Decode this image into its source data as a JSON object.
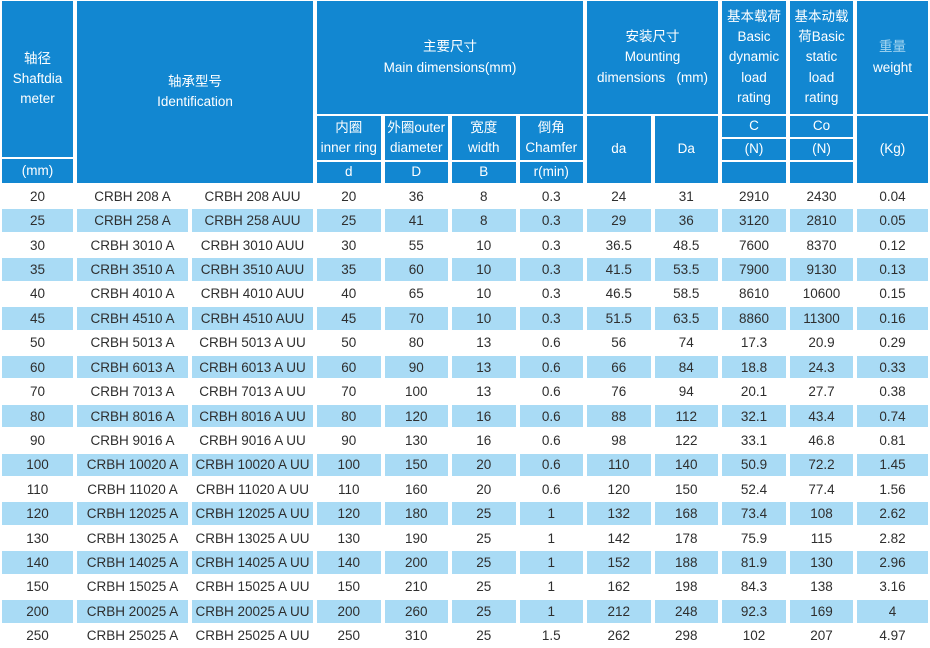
{
  "colors": {
    "header_blue": "#1287d1",
    "row_highlight_blue": "#a9dbf5",
    "data_text": "#2e2e2e",
    "weight_cn_tint": "#a6d6f0"
  },
  "table": {
    "header": {
      "shaft_diameter": "轴径\nShaftdia\nmeter",
      "shaft_diameter_unit": "(mm)",
      "identification": "轴承型号\nIdentification",
      "main_dimensions": "主要尺寸\nMain dimensions(mm)",
      "inner_ring": "内圈\ninner ring",
      "inner_ring_symbol": "d",
      "outer_diameter": "外圈outer\ndiameter",
      "outer_diameter_symbol": "D",
      "width": "宽度\nwidth",
      "width_symbol": "B",
      "chamfer": "倒角\nChamfer",
      "chamfer_symbol": "r(min)",
      "mounting_dimensions": "安装尺寸\nMounting\ndimensions   (mm)",
      "da_label": "da",
      "Da_label": "Da",
      "dynamic_load": "基本载荷\nBasic\ndynamic\nload\nrating",
      "dynamic_symbol": "C",
      "dynamic_unit": "(N)",
      "static_load": "基本动载\n荷Basic\nstatic\nload\nrating",
      "static_symbol": "Co",
      "static_unit": "(N)",
      "weight_cn": "重量",
      "weight_en": "weight",
      "weight_unit": "(Kg)"
    },
    "rows": [
      [
        "20",
        "CRBH 208 A",
        "CRBH 208 AUU",
        "20",
        "36",
        "8",
        "0.3",
        "24",
        "31",
        "2910",
        "2430",
        "0.04"
      ],
      [
        "25",
        "CRBH 258 A",
        "CRBH 258 AUU",
        "25",
        "41",
        "8",
        "0.3",
        "29",
        "36",
        "3120",
        "2810",
        "0.05"
      ],
      [
        "30",
        "CRBH 3010 A",
        "CRBH 3010 AUU",
        "30",
        "55",
        "10",
        "0.3",
        "36.5",
        "48.5",
        "7600",
        "8370",
        "0.12"
      ],
      [
        "35",
        "CRBH 3510 A",
        "CRBH 3510 AUU",
        "35",
        "60",
        "10",
        "0.3",
        "41.5",
        "53.5",
        "7900",
        "9130",
        "0.13"
      ],
      [
        "40",
        "CRBH 4010 A",
        "CRBH 4010 AUU",
        "40",
        "65",
        "10",
        "0.3",
        "46.5",
        "58.5",
        "8610",
        "10600",
        "0.15"
      ],
      [
        "45",
        "CRBH 4510 A",
        "CRBH 4510 AUU",
        "45",
        "70",
        "10",
        "0.3",
        "51.5",
        "63.5",
        "8860",
        "11300",
        "0.16"
      ],
      [
        "50",
        "CRBH 5013 A",
        "CRBH 5013 A UU",
        "50",
        "80",
        "13",
        "0.6",
        "56",
        "74",
        "17.3",
        "20.9",
        "0.29"
      ],
      [
        "60",
        "CRBH 6013 A",
        "CRBH 6013 A UU",
        "60",
        "90",
        "13",
        "0.6",
        "66",
        "84",
        "18.8",
        "24.3",
        "0.33"
      ],
      [
        "70",
        "CRBH 7013 A",
        "CRBH 7013 A UU",
        "70",
        "100",
        "13",
        "0.6",
        "76",
        "94",
        "20.1",
        "27.7",
        "0.38"
      ],
      [
        "80",
        "CRBH 8016 A",
        "CRBH 8016 A UU",
        "80",
        "120",
        "16",
        "0.6",
        "88",
        "112",
        "32.1",
        "43.4",
        "0.74"
      ],
      [
        "90",
        "CRBH 9016 A",
        "CRBH 9016 A UU",
        "90",
        "130",
        "16",
        "0.6",
        "98",
        "122",
        "33.1",
        "46.8",
        "0.81"
      ],
      [
        "100",
        "CRBH 10020 A",
        "CRBH 10020 A UU",
        "100",
        "150",
        "20",
        "0.6",
        "110",
        "140",
        "50.9",
        "72.2",
        "1.45"
      ],
      [
        "110",
        "CRBH 11020 A",
        "CRBH 11020 A UU",
        "110",
        "160",
        "20",
        "0.6",
        "120",
        "150",
        "52.4",
        "77.4",
        "1.56"
      ],
      [
        "120",
        "CRBH 12025 A",
        "CRBH 12025 A UU",
        "120",
        "180",
        "25",
        "1",
        "132",
        "168",
        "73.4",
        "108",
        "2.62"
      ],
      [
        "130",
        "CRBH 13025 A",
        "CRBH 13025 A UU",
        "130",
        "190",
        "25",
        "1",
        "142",
        "178",
        "75.9",
        "115",
        "2.82"
      ],
      [
        "140",
        "CRBH 14025 A",
        "CRBH 14025 A UU",
        "140",
        "200",
        "25",
        "1",
        "152",
        "188",
        "81.9",
        "130",
        "2.96"
      ],
      [
        "150",
        "CRBH 15025 A",
        "CRBH 15025 A UU",
        "150",
        "210",
        "25",
        "1",
        "162",
        "198",
        "84.3",
        "138",
        "3.16"
      ],
      [
        "200",
        "CRBH 20025 A",
        "CRBH 20025 A UU",
        "200",
        "260",
        "25",
        "1",
        "212",
        "248",
        "92.3",
        "169",
        "4"
      ],
      [
        "250",
        "CRBH 25025 A",
        "CRBH 25025 A UU",
        "250",
        "310",
        "25",
        "1.5",
        "262",
        "298",
        "102",
        "207",
        "4.97"
      ]
    ]
  }
}
